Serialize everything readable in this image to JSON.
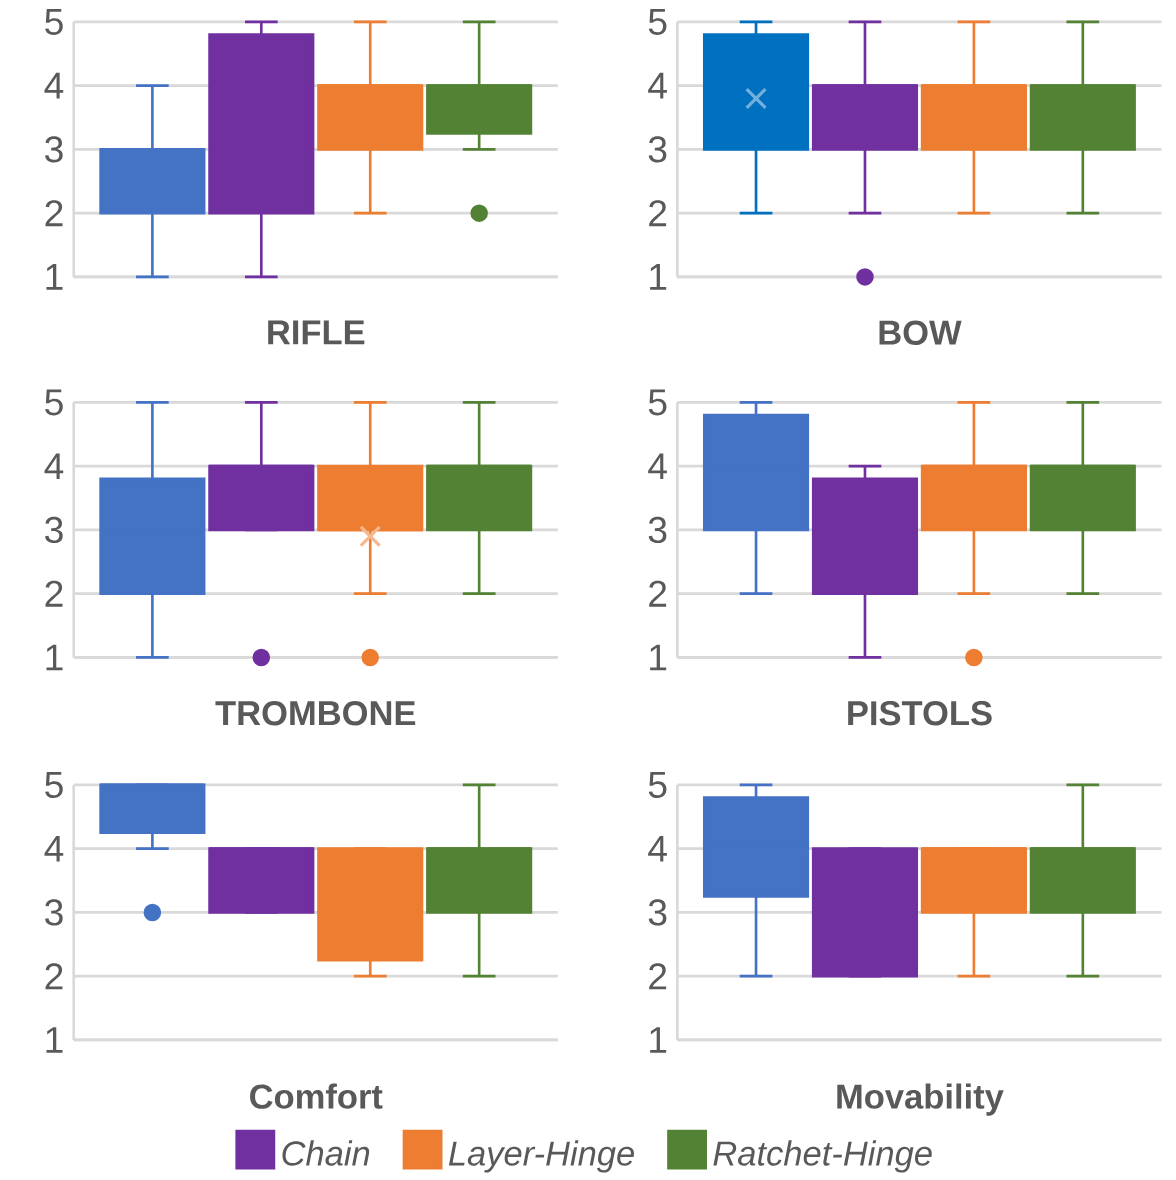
{
  "chart_data": [
    {
      "type": "box",
      "xlabel": "RIFLE",
      "categories": [
        null
      ],
      "ylim": [
        1,
        5
      ],
      "yticks": [
        1,
        2,
        3,
        4,
        5
      ],
      "grid": "y",
      "marker": "circle",
      "series": [
        {
          "color": "#4472c4",
          "boxes": [
            {
              "low": 1,
              "q1": 2,
              "median": 3,
              "q3": 3,
              "high": 4
            }
          ]
        },
        {
          "color": "#7030a0",
          "boxes": [
            {
              "low": 1,
              "q1": 2,
              "median": 4,
              "q3": 4.8,
              "high": 5
            }
          ]
        },
        {
          "color": "#ed7d31",
          "boxes": [
            {
              "low": 2,
              "q1": 3,
              "median": 4,
              "q3": 4,
              "high": 5
            }
          ]
        },
        {
          "color": "#548235",
          "boxes": [
            {
              "low": 3,
              "q1": 3.25,
              "median": 4,
              "q3": 4,
              "high": 5,
              "outliers": [
                2
              ]
            }
          ]
        }
      ]
    },
    {
      "type": "box",
      "xlabel": "BOW",
      "categories": [
        null
      ],
      "ylim": [
        1,
        5
      ],
      "yticks": [
        1,
        2,
        3,
        4,
        5
      ],
      "grid": "y",
      "marker": "circle",
      "series": [
        {
          "color": "#0070c0",
          "boxes": [
            {
              "low": 2,
              "q1": 3,
              "median": 4,
              "q3": 4.8,
              "high": 5,
              "mean": 3.8
            }
          ]
        },
        {
          "color": "#7030a0",
          "boxes": [
            {
              "low": 2,
              "q1": 3,
              "median": 4,
              "q3": 4,
              "high": 5,
              "outliers": [
                1
              ]
            }
          ]
        },
        {
          "color": "#ed7d31",
          "boxes": [
            {
              "low": 2,
              "q1": 3,
              "median": 4,
              "q3": 4,
              "high": 5
            }
          ]
        },
        {
          "color": "#548235",
          "boxes": [
            {
              "low": 2,
              "q1": 3,
              "median": 4,
              "q3": 4,
              "high": 5
            }
          ]
        }
      ]
    },
    {
      "type": "box",
      "xlabel": "TROMBONE",
      "categories": [
        null
      ],
      "ylim": [
        1,
        5
      ],
      "yticks": [
        1,
        2,
        3,
        4,
        5
      ],
      "grid": "y",
      "marker": "circle",
      "series": [
        {
          "color": "#4472c4",
          "boxes": [
            {
              "low": 1,
              "q1": 2,
              "median": 3,
              "q3": 3.8,
              "high": 5
            }
          ]
        },
        {
          "color": "#7030a0",
          "boxes": [
            {
              "low": 3,
              "q1": 3,
              "median": 4,
              "q3": 4,
              "high": 5,
              "outliers": [
                1
              ]
            }
          ]
        },
        {
          "color": "#ed7d31",
          "boxes": [
            {
              "low": 2,
              "q1": 3,
              "median": 3,
              "q3": 4,
              "high": 5,
              "mean": 2.9,
              "outliers": [
                1
              ]
            }
          ]
        },
        {
          "color": "#548235",
          "boxes": [
            {
              "low": 2,
              "q1": 3,
              "median": 4,
              "q3": 4,
              "high": 5
            }
          ]
        }
      ]
    },
    {
      "type": "box",
      "xlabel": "PISTOLS",
      "categories": [
        null
      ],
      "ylim": [
        1,
        5
      ],
      "yticks": [
        1,
        2,
        3,
        4,
        5
      ],
      "grid": "y",
      "marker": "circle",
      "series": [
        {
          "color": "#4472c4",
          "boxes": [
            {
              "low": 2,
              "q1": 3,
              "median": 4,
              "q3": 4.8,
              "high": 5
            }
          ]
        },
        {
          "color": "#7030a0",
          "boxes": [
            {
              "low": 1,
              "q1": 2,
              "median": 3,
              "q3": 3.8,
              "high": 4
            }
          ]
        },
        {
          "color": "#ed7d31",
          "boxes": [
            {
              "low": 2,
              "q1": 3,
              "median": 4,
              "q3": 4,
              "high": 5,
              "outliers": [
                1
              ]
            }
          ]
        },
        {
          "color": "#548235",
          "boxes": [
            {
              "low": 2,
              "q1": 3,
              "median": 4,
              "q3": 4,
              "high": 5
            }
          ]
        }
      ]
    },
    {
      "type": "box",
      "xlabel": "Comfort",
      "categories": [
        null
      ],
      "ylim": [
        1,
        5
      ],
      "yticks": [
        1,
        2,
        3,
        4,
        5
      ],
      "grid": "y",
      "marker": "circle",
      "legend": "bottom",
      "series": [
        {
          "color": "#4472c4",
          "boxes": [
            {
              "low": 4,
              "q1": 4.25,
              "median": 5,
              "q3": 5,
              "high": 5,
              "outliers": [
                3
              ]
            }
          ]
        },
        {
          "name": "Chain",
          "color": "#7030a0",
          "boxes": [
            {
              "low": 3,
              "q1": 3,
              "median": 4,
              "q3": 4,
              "high": 4
            }
          ]
        },
        {
          "name": "Layer-Hinge",
          "color": "#ed7d31",
          "boxes": [
            {
              "low": 2,
              "q1": 2.25,
              "median": 3,
              "q3": 4,
              "high": 4
            }
          ]
        },
        {
          "name": "Ratchet-Hinge",
          "color": "#548235",
          "boxes": [
            {
              "low": 2,
              "q1": 3,
              "median": 4,
              "q3": 4,
              "high": 5
            }
          ]
        }
      ]
    },
    {
      "type": "box",
      "xlabel": "Movability",
      "categories": [
        null
      ],
      "ylim": [
        1,
        5
      ],
      "yticks": [
        1,
        2,
        3,
        4,
        5
      ],
      "grid": "y",
      "marker": "circle",
      "series": [
        {
          "color": "#4472c4",
          "boxes": [
            {
              "low": 2,
              "q1": 3.25,
              "median": 4,
              "q3": 4.8,
              "high": 5
            }
          ]
        },
        {
          "color": "#7030a0",
          "boxes": [
            {
              "low": 2,
              "q1": 2,
              "median": 3,
              "q3": 4,
              "high": 4
            }
          ]
        },
        {
          "color": "#ed7d31",
          "boxes": [
            {
              "low": 2,
              "q1": 3,
              "median": 4,
              "q3": 4,
              "high": 4
            }
          ]
        },
        {
          "color": "#548235",
          "boxes": [
            {
              "low": 2,
              "q1": 3,
              "median": 4,
              "q3": 4,
              "high": 5
            }
          ]
        }
      ]
    }
  ]
}
